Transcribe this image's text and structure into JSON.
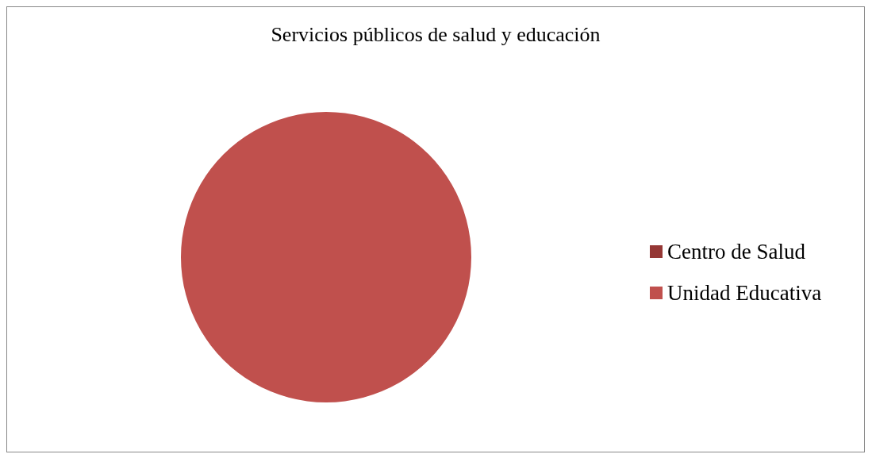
{
  "chart_data": {
    "type": "pie",
    "title": "Servicios públicos de salud y educación",
    "categories": [
      "Centro de Salud",
      "Unidad Educativa"
    ],
    "values": [
      0,
      100
    ],
    "colors": [
      "#953735",
      "#c0504d"
    ],
    "legend": "right"
  }
}
